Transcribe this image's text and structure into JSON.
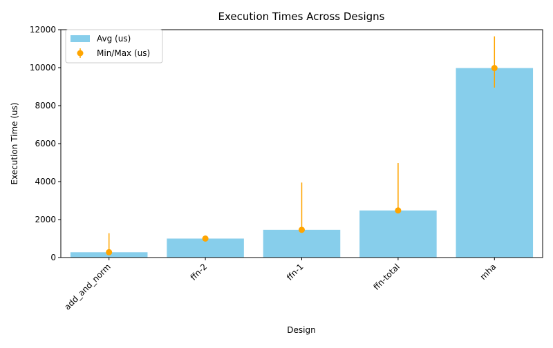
{
  "chart_data": {
    "type": "bar",
    "title": "Execution Times Across Designs",
    "xlabel": "Design",
    "ylabel": "Execution Time (us)",
    "categories": [
      "add_and_norm",
      "ffn-2",
      "ffn-1",
      "ffn-total",
      "mha"
    ],
    "series": [
      {
        "name": "Avg (us)",
        "type": "bar",
        "color": "#87ceeb",
        "values": [
          280,
          1000,
          1460,
          2480,
          9980
        ]
      },
      {
        "name": "Min/Max (us)",
        "type": "errorbar",
        "color": "#ffa500",
        "values": [
          280,
          1000,
          1460,
          2480,
          9980
        ],
        "min": [
          240,
          940,
          1380,
          2420,
          8950
        ],
        "max": [
          1280,
          1080,
          3950,
          4980,
          11650
        ]
      }
    ],
    "ylim": [
      0,
      12000
    ],
    "yticks": [
      0,
      2000,
      4000,
      6000,
      8000,
      10000,
      12000
    ],
    "grid": false,
    "legend": "top-left"
  }
}
